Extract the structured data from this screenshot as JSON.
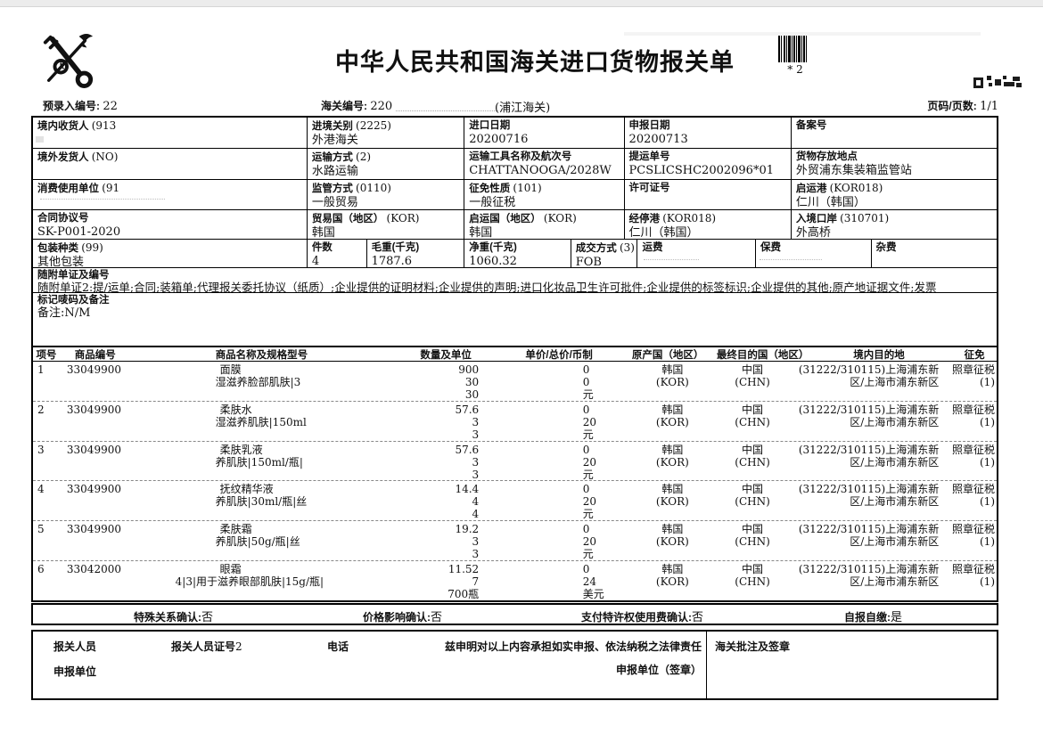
{
  "header": {
    "title": "中华人民共和国海关进口货物报关单",
    "barcode_caption": "* 2",
    "preentry_label": "预录入编号:",
    "preentry_value": "22",
    "customs_no_label": "海关编号:",
    "customs_no_value": "220",
    "customs_office": "(浦江海关)",
    "page_label": "页码/页数:",
    "page_value": "1/1"
  },
  "form": {
    "consignee": {
      "label": "境内收货人",
      "code": "(913",
      "value": ""
    },
    "entry_customs": {
      "label": "进境关别",
      "code": "(2225)",
      "value": "外港海关"
    },
    "import_date": {
      "label": "进口日期",
      "value": "20200716"
    },
    "declare_date": {
      "label": "申报日期",
      "value": "20200713"
    },
    "record_no": {
      "label": "备案号",
      "value": ""
    },
    "consignor": {
      "label": "境外发货人",
      "code": "(NO)",
      "value": ""
    },
    "transport_mode": {
      "label": "运输方式",
      "code": "(2)",
      "value": "水路运输"
    },
    "transport_name": {
      "label": "运输工具名称及航次号",
      "value": "CHATTANOOGA/2028W"
    },
    "bill_no": {
      "label": "提运单号",
      "value": "PCSLICSHC2002096*01"
    },
    "storage_place": {
      "label": "货物存放地点",
      "value": "外贸浦东集装箱监管站"
    },
    "consumer_unit": {
      "label": "消费使用单位",
      "code": "(91",
      "value": ""
    },
    "supervision_mode": {
      "label": "监管方式",
      "code": "(0110)",
      "value": "一般贸易"
    },
    "levy_nature": {
      "label": "征免性质",
      "code": "(101)",
      "value": "一般征税"
    },
    "license_no": {
      "label": "许可证号",
      "value": ""
    },
    "departure_port": {
      "label": "启运港",
      "code": "(KOR018)",
      "value": "仁川（韩国）"
    },
    "contract_no": {
      "label": "合同协议号",
      "value": "SK-P001-2020"
    },
    "trade_country": {
      "label": "贸易国（地区）",
      "code": "(KOR)",
      "value": "韩国"
    },
    "departure_country": {
      "label": "启运国（地区）",
      "code": "(KOR)",
      "value": "韩国"
    },
    "transit_port": {
      "label": "经停港",
      "code": "(KOR018)",
      "value": "仁川（韩国）"
    },
    "entry_port": {
      "label": "入境口岸",
      "code": "(310701)",
      "value": "外高桥"
    },
    "package_type": {
      "label": "包装种类",
      "code": "(99)",
      "value": "其他包装"
    },
    "pieces": {
      "label": "件数",
      "value": "4"
    },
    "gross_weight": {
      "label": "毛重(千克)",
      "value": "1787.6"
    },
    "net_weight": {
      "label": "净重(千克)",
      "value": "1060.32"
    },
    "transaction_mode": {
      "label": "成交方式",
      "code": "(3)",
      "value": "FOB"
    },
    "freight": {
      "label": "运费",
      "value": ""
    },
    "insurance": {
      "label": "保费",
      "value": ""
    },
    "misc_fee": {
      "label": "杂费",
      "value": ""
    },
    "documents": {
      "label": "随附单证及编号",
      "value": "随附单证2:提/运单;合同;装箱单;代理报关委托协议（纸质）;企业提供的证明材料;企业提供的声明;进口化妆品卫生许可批件;企业提供的标签标识;企业提供的其他;原产地证据文件;发票"
    },
    "marks": {
      "label": "标记唛码及备注",
      "value": "备注:N/M"
    }
  },
  "goods": {
    "columns": [
      "项号",
      "商品编号",
      "商品名称及规格型号",
      "数量及单位",
      "单价/总价/币制",
      "原产国（地区）",
      "最终目的国（地区）",
      "境内目的地",
      "征免"
    ],
    "rows": [
      {
        "no": "1",
        "code": "33049900",
        "name_lines": [
          "面膜",
          "湿滋养脸部肌肤|3"
        ],
        "qty_lines": [
          "900",
          "30",
          "30"
        ],
        "price_lines": [
          "0",
          "0",
          "元"
        ],
        "origin": [
          "韩国",
          "(KOR)"
        ],
        "dest": [
          "中国",
          "(CHN)"
        ],
        "domestic": [
          "(31222/310115)上海浦东新",
          "区/上海市浦东新区"
        ],
        "levy": [
          "照章征税",
          "(1)"
        ]
      },
      {
        "no": "2",
        "code": "33049900",
        "name_lines": [
          "柔肤水",
          "湿滋养肌肤|150ml"
        ],
        "qty_lines": [
          "57.6",
          "3",
          "3"
        ],
        "price_lines": [
          "0",
          "20",
          "元"
        ],
        "origin": [
          "韩国",
          "(KOR)"
        ],
        "dest": [
          "中国",
          "(CHN)"
        ],
        "domestic": [
          "(31222/310115)上海浦东新",
          "区/上海市浦东新区"
        ],
        "levy": [
          "照章征税",
          "(1)"
        ]
      },
      {
        "no": "3",
        "code": "33049900",
        "name_lines": [
          "柔肤乳液",
          "养肌肤|150ml/瓶|"
        ],
        "qty_lines": [
          "57.6",
          "3",
          "3"
        ],
        "price_lines": [
          "0",
          "20",
          "元"
        ],
        "origin": [
          "韩国",
          "(KOR)"
        ],
        "dest": [
          "中国",
          "(CHN)"
        ],
        "domestic": [
          "(31222/310115)上海浦东新",
          "区/上海市浦东新区"
        ],
        "levy": [
          "照章征税",
          "(1)"
        ]
      },
      {
        "no": "4",
        "code": "33049900",
        "name_lines": [
          "抚纹精华液",
          "养肌肤|30ml/瓶|丝"
        ],
        "qty_lines": [
          "14.4",
          "4",
          "4"
        ],
        "price_lines": [
          "0",
          "20",
          "元"
        ],
        "origin": [
          "韩国",
          "(KOR)"
        ],
        "dest": [
          "中国",
          "(CHN)"
        ],
        "domestic": [
          "(31222/310115)上海浦东新",
          "区/上海市浦东新区"
        ],
        "levy": [
          "照章征税",
          "(1)"
        ]
      },
      {
        "no": "5",
        "code": "33049900",
        "name_lines": [
          "柔肤霜",
          "养肌肤|50g/瓶|丝"
        ],
        "qty_lines": [
          "19.2",
          "3",
          "3"
        ],
        "price_lines": [
          "0",
          "20",
          "元"
        ],
        "origin": [
          "韩国",
          "(KOR)"
        ],
        "dest": [
          "中国",
          "(CHN)"
        ],
        "domestic": [
          "(31222/310115)上海浦东新",
          "区/上海市浦东新区"
        ],
        "levy": [
          "照章征税",
          "(1)"
        ]
      },
      {
        "no": "6",
        "code": "33042000",
        "name_lines": [
          "眼霜",
          "4|3|用于滋养眼部肌肤|15g/瓶|"
        ],
        "qty_lines": [
          "11.52",
          "7",
          "700瓶"
        ],
        "price_lines": [
          "0",
          "24",
          "美元"
        ],
        "origin": [
          "韩国",
          "(KOR)"
        ],
        "dest": [
          "中国",
          "(CHN)"
        ],
        "domestic": [
          "(31222/310115)上海浦东新",
          "区/上海市浦东新区"
        ],
        "levy": [
          "照章征税",
          "(1)"
        ]
      }
    ]
  },
  "confirmations": [
    {
      "label": "特殊关系确认:",
      "value": "否"
    },
    {
      "label": "价格影响确认:",
      "value": "否"
    },
    {
      "label": "支付特许权使用费确认:",
      "value": "否"
    },
    {
      "label": "自报自缴:",
      "value": "是"
    }
  ],
  "footer": {
    "declarant_label": "报关人员",
    "declarant_id_label": "报关人员证号",
    "declarant_id_value": "2",
    "phone_label": "电话",
    "declaration_text": "兹申明对以上内容承担如实申报、依法纳税之法律责任",
    "declare_unit_label": "申报单位",
    "declare_unit_sign_label": "申报单位（签章）",
    "customs_note_label": "海关批注及签章"
  }
}
